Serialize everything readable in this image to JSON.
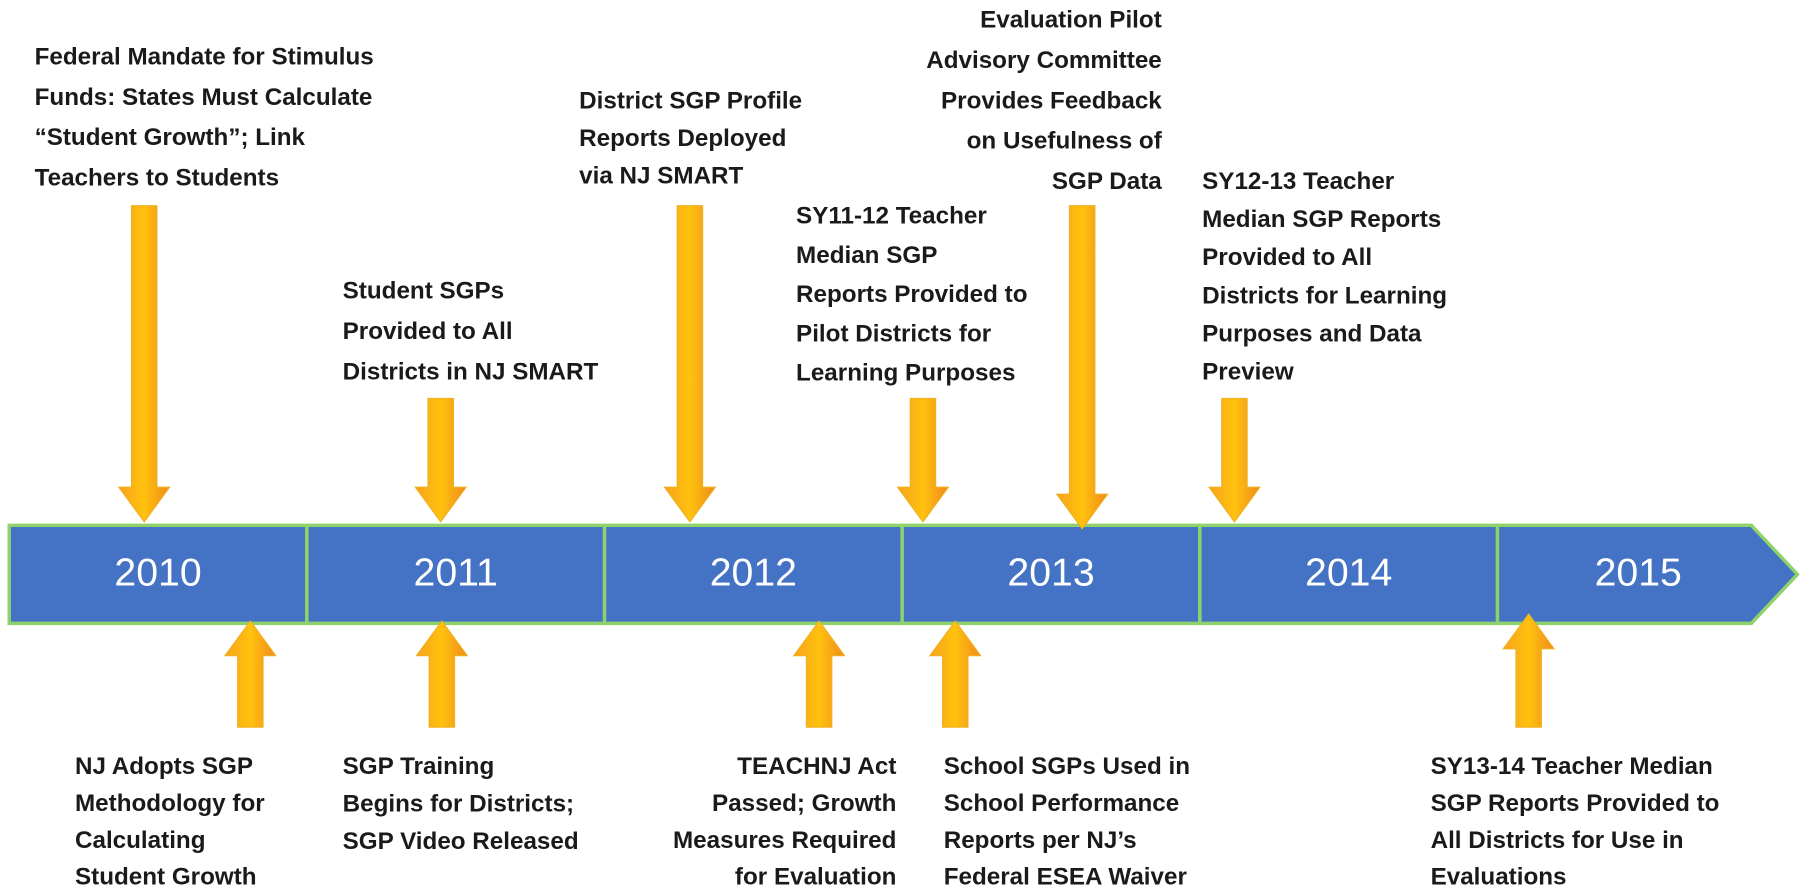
{
  "timeline": {
    "years": [
      "2010",
      "2011",
      "2012",
      "2013",
      "2014",
      "2015"
    ]
  },
  "events": [
    {
      "lines": [
        "Federal Mandate for Stimulus",
        "Funds: States Must Calculate",
        "“Student Growth”; Link",
        "Teachers to Students"
      ]
    },
    {
      "lines": [
        "Student SGPs",
        "Provided to All",
        "Districts in NJ SMART"
      ]
    },
    {
      "lines": [
        "District SGP Profile",
        "Reports Deployed",
        "via NJ SMART"
      ]
    },
    {
      "lines": [
        "SY11-12 Teacher",
        "Median SGP",
        "Reports Provided to",
        "Pilot Districts for",
        "Learning Purposes"
      ]
    },
    {
      "lines": [
        "Evaluation Pilot",
        "Advisory Committee",
        "Provides Feedback",
        "on Usefulness of",
        "SGP Data"
      ]
    },
    {
      "lines": [
        "SY12-13 Teacher",
        "Median SGP Reports",
        "Provided to All",
        "Districts for Learning",
        "Purposes and Data",
        "Preview"
      ]
    },
    {
      "lines": [
        "NJ Adopts SGP",
        "Methodology for",
        "Calculating",
        "Student Growth"
      ]
    },
    {
      "lines": [
        "SGP Training",
        "Begins for Districts;",
        "SGP Video Released"
      ]
    },
    {
      "lines": [
        "TEACHNJ Act",
        "Passed; Growth",
        "Measures Required",
        "for Evaluation"
      ]
    },
    {
      "lines": [
        "School SGPs Used in",
        "School Performance",
        "Reports per NJ’s",
        "Federal ESEA Waiver"
      ]
    },
    {
      "lines": [
        "SY13-14 Teacher Median",
        "SGP Reports Provided to",
        "All Districts for Use in",
        "Evaluations"
      ]
    }
  ]
}
